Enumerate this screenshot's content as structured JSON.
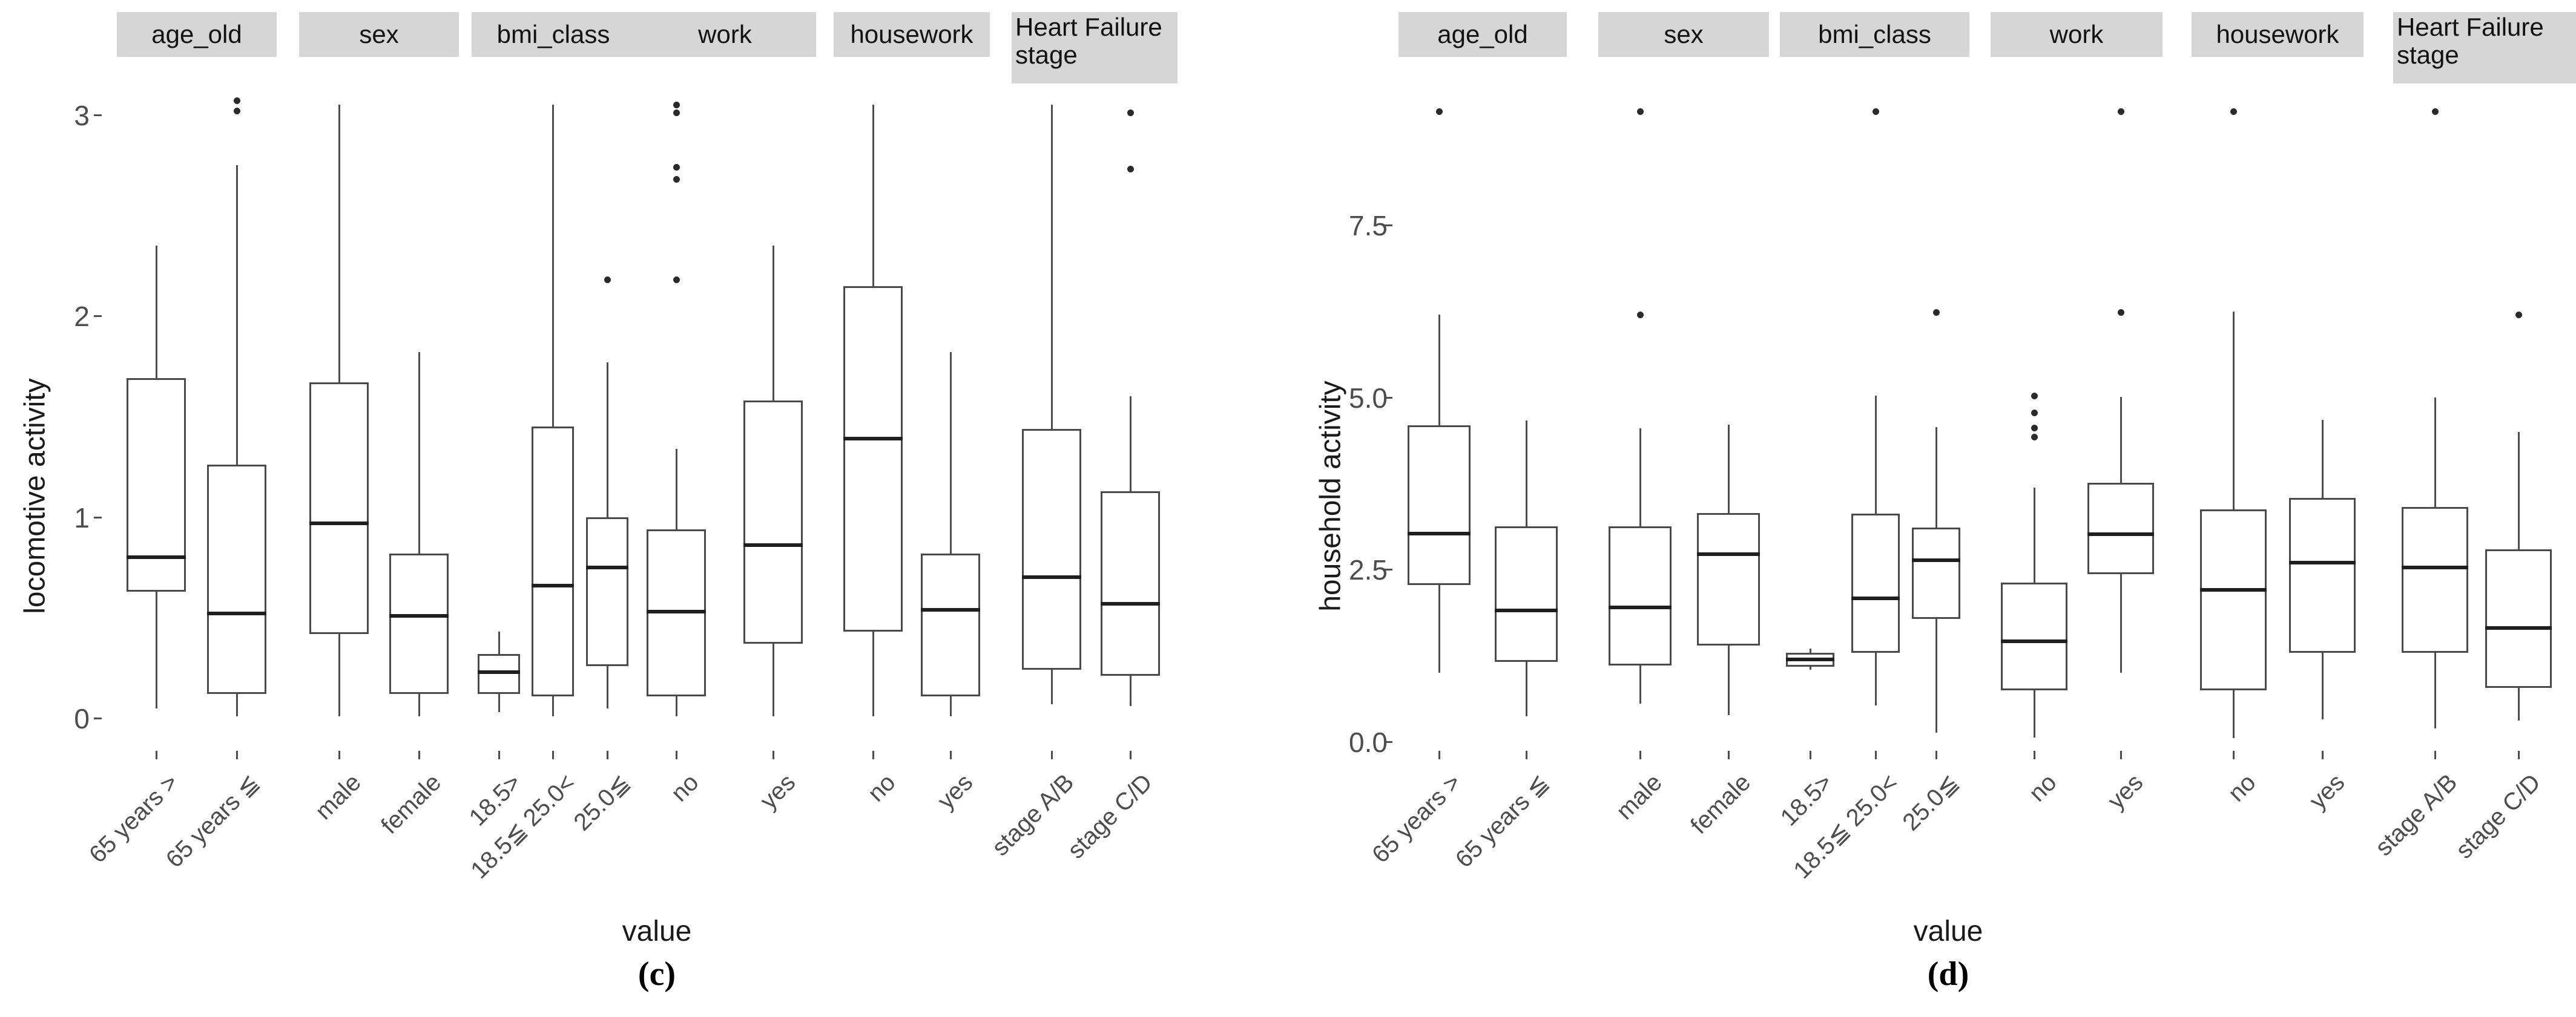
{
  "figure": {
    "background": "#ffffff",
    "strip_bg": "#d6d6d6",
    "box_border_color": "#4a4a4a",
    "median_color": "#1f1f1f",
    "whisker_color": "#4d4d4d",
    "outlier_color": "#2a2a2a",
    "axis_text_color": "#4d4d4d"
  },
  "chart_data": [
    {
      "type": "boxplot-faceted",
      "caption": "(c)",
      "y_label": "locomotive activity",
      "x_label": "value",
      "ylim": [
        -0.15,
        3.28
      ],
      "grid": false,
      "y_ticks": [
        {
          "value": 0,
          "label": "0"
        },
        {
          "value": 1,
          "label": "1"
        },
        {
          "value": 2,
          "label": "2"
        },
        {
          "value": 3,
          "label": "3"
        }
      ],
      "facets": [
        {
          "label": "age_old",
          "categories": [
            {
              "label": "65 years >",
              "box": {
                "lo": 0.05,
                "q1": 0.63,
                "med": 0.8,
                "q3": 1.69,
                "hi": 2.35
              },
              "outliers": []
            },
            {
              "label": "65 years ≦",
              "box": {
                "lo": 0.01,
                "q1": 0.12,
                "med": 0.52,
                "q3": 1.26,
                "hi": 2.75
              },
              "outliers": [
                3.02,
                3.07
              ]
            }
          ]
        },
        {
          "label": "sex",
          "categories": [
            {
              "label": "male",
              "box": {
                "lo": 0.01,
                "q1": 0.42,
                "med": 0.97,
                "q3": 1.67,
                "hi": 3.05
              },
              "outliers": []
            },
            {
              "label": "female",
              "box": {
                "lo": 0.01,
                "q1": 0.12,
                "med": 0.51,
                "q3": 0.82,
                "hi": 1.82
              },
              "outliers": []
            }
          ]
        },
        {
          "label": "bmi_class",
          "categories": [
            {
              "label": "18.5>",
              "box": {
                "lo": 0.03,
                "q1": 0.12,
                "med": 0.23,
                "q3": 0.32,
                "hi": 0.43
              },
              "outliers": []
            },
            {
              "label": "18.5≦ 25.0<",
              "box": {
                "lo": 0.01,
                "q1": 0.11,
                "med": 0.66,
                "q3": 1.45,
                "hi": 3.05
              },
              "outliers": []
            },
            {
              "label": "25.0≦",
              "box": {
                "lo": 0.05,
                "q1": 0.26,
                "med": 0.75,
                "q3": 1.0,
                "hi": 1.77
              },
              "outliers": [
                2.18
              ]
            }
          ]
        },
        {
          "label": "work",
          "categories": [
            {
              "label": "no",
              "box": {
                "lo": 0.01,
                "q1": 0.11,
                "med": 0.53,
                "q3": 0.94,
                "hi": 1.34
              },
              "outliers": [
                2.18,
                2.68,
                2.74,
                3.01,
                3.05
              ]
            },
            {
              "label": "yes",
              "box": {
                "lo": 0.01,
                "q1": 0.37,
                "med": 0.86,
                "q3": 1.58,
                "hi": 2.35
              },
              "outliers": []
            }
          ]
        },
        {
          "label": "housework",
          "categories": [
            {
              "label": "no",
              "box": {
                "lo": 0.01,
                "q1": 0.43,
                "med": 1.39,
                "q3": 2.15,
                "hi": 3.05
              },
              "outliers": []
            },
            {
              "label": "yes",
              "box": {
                "lo": 0.01,
                "q1": 0.11,
                "med": 0.54,
                "q3": 0.82,
                "hi": 1.82
              },
              "outliers": []
            }
          ]
        },
        {
          "label": "Heart Failure stage",
          "categories": [
            {
              "label": "stage A/B",
              "box": {
                "lo": 0.07,
                "q1": 0.24,
                "med": 0.7,
                "q3": 1.44,
                "hi": 3.05
              },
              "outliers": []
            },
            {
              "label": "stage C/D",
              "box": {
                "lo": 0.06,
                "q1": 0.21,
                "med": 0.57,
                "q3": 1.13,
                "hi": 1.6
              },
              "outliers": [
                2.73,
                3.01
              ]
            }
          ]
        }
      ]
    },
    {
      "type": "boxplot-faceted",
      "caption": "(d)",
      "y_label": "household activity",
      "x_label": "value",
      "ylim": [
        -0.1,
        9.92
      ],
      "grid": false,
      "y_ticks": [
        {
          "value": 0,
          "label": "0.0"
        },
        {
          "value": 2.5,
          "label": "2.5"
        },
        {
          "value": 5,
          "label": "5.0"
        },
        {
          "value": 7.5,
          "label": "7.5"
        }
      ],
      "facets": [
        {
          "label": "age_old",
          "categories": [
            {
              "label": "65 years >",
              "box": {
                "lo": 1.0,
                "q1": 2.27,
                "med": 3.02,
                "q3": 4.59,
                "hi": 6.2
              },
              "outliers": [
                9.15
              ]
            },
            {
              "label": "65 years ≦",
              "box": {
                "lo": 0.37,
                "q1": 1.16,
                "med": 1.9,
                "q3": 3.13,
                "hi": 4.66
              },
              "outliers": []
            }
          ]
        },
        {
          "label": "sex",
          "categories": [
            {
              "label": "male",
              "box": {
                "lo": 0.55,
                "q1": 1.1,
                "med": 1.95,
                "q3": 3.13,
                "hi": 4.55
              },
              "outliers": [
                6.2,
                9.15
              ]
            },
            {
              "label": "female",
              "box": {
                "lo": 0.38,
                "q1": 1.39,
                "med": 2.72,
                "q3": 3.32,
                "hi": 4.6
              },
              "outliers": []
            }
          ]
        },
        {
          "label": "bmi_class",
          "categories": [
            {
              "label": "18.5>",
              "box": {
                "lo": 1.04,
                "q1": 1.09,
                "med": 1.19,
                "q3": 1.29,
                "hi": 1.35
              },
              "outliers": []
            },
            {
              "label": "18.5≦ 25.0<",
              "box": {
                "lo": 0.52,
                "q1": 1.29,
                "med": 2.08,
                "q3": 3.31,
                "hi": 5.02
              },
              "outliers": [
                9.15
              ]
            },
            {
              "label": "25.0≦",
              "box": {
                "lo": 0.13,
                "q1": 1.78,
                "med": 2.63,
                "q3": 3.11,
                "hi": 4.57
              },
              "outliers": [
                6.23
              ]
            }
          ]
        },
        {
          "label": "work",
          "categories": [
            {
              "label": "no",
              "box": {
                "lo": 0.06,
                "q1": 0.74,
                "med": 1.46,
                "q3": 2.31,
                "hi": 3.69
              },
              "outliers": [
                4.42,
                4.55,
                4.77,
                5.02
              ]
            },
            {
              "label": "yes",
              "box": {
                "lo": 1.0,
                "q1": 2.43,
                "med": 3.01,
                "q3": 3.76,
                "hi": 5.01
              },
              "outliers": [
                6.23,
                9.15
              ]
            }
          ]
        },
        {
          "label": "housework",
          "categories": [
            {
              "label": "no",
              "box": {
                "lo": 0.05,
                "q1": 0.74,
                "med": 2.2,
                "q3": 3.37,
                "hi": 6.25
              },
              "outliers": [
                9.15
              ]
            },
            {
              "label": "yes",
              "box": {
                "lo": 0.32,
                "q1": 1.29,
                "med": 2.6,
                "q3": 3.54,
                "hi": 4.67
              },
              "outliers": []
            }
          ]
        },
        {
          "label": "Heart Failure stage",
          "categories": [
            {
              "label": "stage A/B",
              "box": {
                "lo": 0.19,
                "q1": 1.29,
                "med": 2.53,
                "q3": 3.41,
                "hi": 5.0
              },
              "outliers": [
                9.15
              ]
            },
            {
              "label": "stage C/D",
              "box": {
                "lo": 0.3,
                "q1": 0.78,
                "med": 1.65,
                "q3": 2.79,
                "hi": 4.5
              },
              "outliers": [
                6.2
              ]
            }
          ]
        }
      ]
    }
  ]
}
